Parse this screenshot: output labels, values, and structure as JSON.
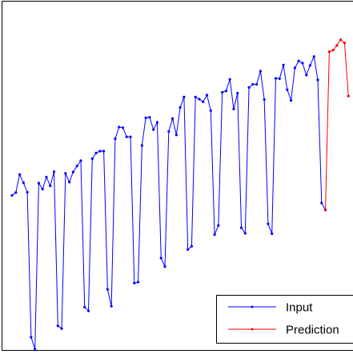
{
  "chart_data": {
    "type": "line",
    "title": "",
    "xlabel": "",
    "ylabel": "",
    "grid": false,
    "legend_position": "bottom-right",
    "xlim": [
      0,
      89
    ],
    "ylim": [
      0,
      100
    ],
    "series": [
      {
        "name": "Input",
        "color": "#0000ff",
        "x": [
          0,
          1,
          2,
          3,
          4,
          5,
          6,
          7,
          8,
          9,
          10,
          11,
          12,
          13,
          14,
          15,
          16,
          17,
          18,
          19,
          20,
          21,
          22,
          23,
          24,
          25,
          26,
          27,
          28,
          29,
          30,
          31,
          32,
          33,
          34,
          35,
          36,
          37,
          38,
          39,
          40,
          41,
          42,
          43,
          44,
          45,
          46,
          47,
          48,
          49,
          50,
          51,
          52,
          53,
          54,
          55,
          56,
          57,
          58,
          59,
          60,
          61,
          62,
          63,
          64,
          65,
          66,
          67,
          68,
          69,
          70,
          71,
          72,
          73,
          74,
          75,
          76,
          77,
          78,
          79,
          80,
          81,
          82
        ],
        "values": [
          48.6,
          49.5,
          55.2,
          52.6,
          49.6,
          3.8,
          0.0,
          52.5,
          50.6,
          54.4,
          51.6,
          56.1,
          7.4,
          6.5,
          55.6,
          52.8,
          56.0,
          57.9,
          59.6,
          13.3,
          12.1,
          60.2,
          62.0,
          62.6,
          62.6,
          18.9,
          13.6,
          66.5,
          70.2,
          70.0,
          67.1,
          67.1,
          20.9,
          21.2,
          64.4,
          73.1,
          73.3,
          69.4,
          71.7,
          28.8,
          26.1,
          68.8,
          72.9,
          67.7,
          76.4,
          79.7,
          31.5,
          32.5,
          79.7,
          79.0,
          78.2,
          80.3,
          75.4,
          36.2,
          39.1,
          81.2,
          81.6,
          85.3,
          75.9,
          80.9,
          38.4,
          36.6,
          82.7,
          83.7,
          83.7,
          87.9,
          78.9,
          39.6,
          36.5,
          85.6,
          85.5,
          89.8,
          82.0,
          78.6,
          88.9,
          91.1,
          90.4,
          86.6,
          89.7,
          92.5,
          85.1,
          46.2,
          44.0
        ]
      },
      {
        "name": "Prediction",
        "color": "#ff0000",
        "x": [
          82,
          83,
          84,
          85,
          86,
          87,
          88
        ],
        "values": [
          44.0,
          94.0,
          94.5,
          96.0,
          97.8,
          96.8,
          80.0
        ]
      }
    ]
  }
}
